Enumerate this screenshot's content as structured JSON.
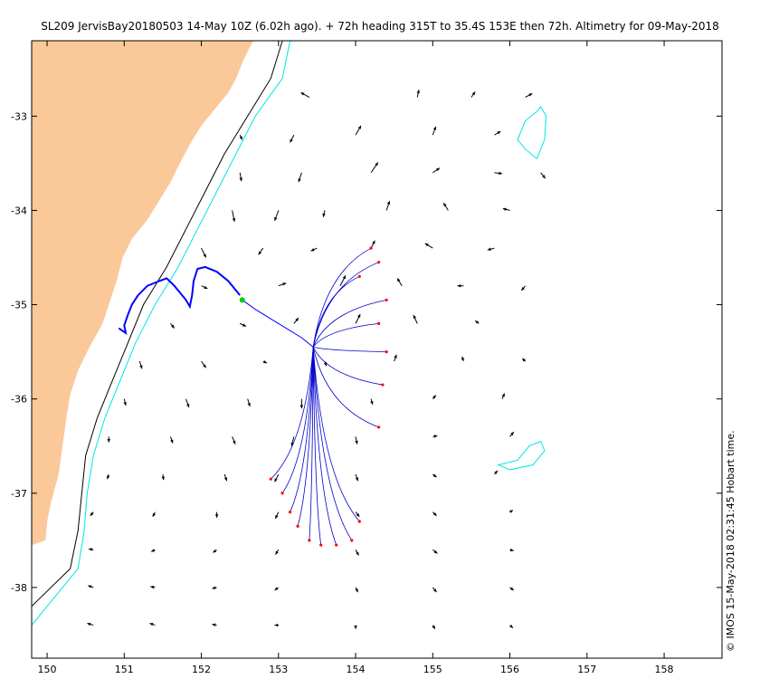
{
  "title": "SL209 JervisBay20180503 14-May 10Z (6.02h ago). + 72h heading 315T to 35.4S 153E then 72h. Altimetry for 09-May-2018",
  "credit": "© IMOS 15-May-2018 02:31:45 Hobart time.",
  "colors": {
    "land": "#fac899",
    "contour_offshore": "#00e5e5",
    "contour_shelf": "#000000",
    "glider_track": "#0000ff",
    "trajectory": "#0000cc",
    "trajectory_end": "#ff0000",
    "current_marker": "#00cc00",
    "arrow": "#000000"
  },
  "axes": {
    "x_ticks": [
      150,
      151,
      152,
      153,
      154,
      155,
      156,
      157,
      158
    ],
    "x_tick_labels": [
      "150",
      "151",
      "152",
      "153",
      "154",
      "155",
      "156",
      "157",
      "158"
    ],
    "y_ticks": [
      -33,
      -34,
      -35,
      -36,
      -37,
      -38
    ],
    "y_tick_labels": [
      "-33",
      "-34",
      "-35",
      "-36",
      "-37",
      "-38"
    ],
    "xlim": [
      149.8,
      158.75
    ],
    "ylim": [
      -38.75,
      -32.2
    ]
  },
  "map": {
    "coast": [
      [
        -32.2,
        152.67
      ],
      [
        -32.4,
        152.55
      ],
      [
        -32.6,
        152.45
      ],
      [
        -32.75,
        152.35
      ],
      [
        -32.9,
        152.2
      ],
      [
        -33.1,
        152.0
      ],
      [
        -33.3,
        151.85
      ],
      [
        -33.5,
        151.72
      ],
      [
        -33.7,
        151.6
      ],
      [
        -33.9,
        151.45
      ],
      [
        -34.1,
        151.3
      ],
      [
        -34.3,
        151.1
      ],
      [
        -34.5,
        150.98
      ],
      [
        -34.75,
        150.9
      ],
      [
        -35.0,
        150.8
      ],
      [
        -35.2,
        150.72
      ],
      [
        -35.45,
        150.55
      ],
      [
        -35.7,
        150.4
      ],
      [
        -35.95,
        150.3
      ],
      [
        -36.2,
        150.25
      ],
      [
        -36.5,
        150.2
      ],
      [
        -36.8,
        150.15
      ],
      [
        -37.1,
        150.05
      ],
      [
        -37.3,
        150.0
      ],
      [
        -37.5,
        149.98
      ],
      [
        -37.55,
        149.8
      ]
    ],
    "contour_shelf": [
      [
        -32.2,
        153.05
      ],
      [
        -32.6,
        152.9
      ],
      [
        -33.0,
        152.6
      ],
      [
        -33.4,
        152.3
      ],
      [
        -33.8,
        152.05
      ],
      [
        -34.2,
        151.8
      ],
      [
        -34.6,
        151.55
      ],
      [
        -35.0,
        151.25
      ],
      [
        -35.4,
        151.05
      ],
      [
        -35.8,
        150.85
      ],
      [
        -36.2,
        150.65
      ],
      [
        -36.6,
        150.5
      ],
      [
        -37.0,
        150.45
      ],
      [
        -37.4,
        150.4
      ],
      [
        -37.8,
        150.3
      ],
      [
        -38.2,
        149.8
      ]
    ],
    "contour_offshore": [
      [
        -32.2,
        153.15
      ],
      [
        -32.6,
        153.05
      ],
      [
        -33.0,
        152.7
      ],
      [
        -33.4,
        152.45
      ],
      [
        -33.8,
        152.2
      ],
      [
        -34.2,
        151.95
      ],
      [
        -34.6,
        151.7
      ],
      [
        -35.0,
        151.4
      ],
      [
        -35.4,
        151.15
      ],
      [
        -35.8,
        150.95
      ],
      [
        -36.2,
        150.75
      ],
      [
        -36.6,
        150.6
      ],
      [
        -37.0,
        150.52
      ],
      [
        -37.4,
        150.48
      ],
      [
        -37.8,
        150.4
      ],
      [
        -38.4,
        149.8
      ]
    ],
    "ring_ne": [
      [
        -32.95,
        156.35
      ],
      [
        -32.9,
        156.4
      ],
      [
        -33.0,
        156.47
      ],
      [
        -33.25,
        156.45
      ],
      [
        -33.45,
        156.35
      ],
      [
        -33.35,
        156.2
      ],
      [
        -33.25,
        156.1
      ],
      [
        -33.05,
        156.2
      ],
      [
        -32.95,
        156.35
      ]
    ],
    "ring_se": [
      [
        -36.45,
        156.4
      ],
      [
        -36.55,
        156.45
      ],
      [
        -36.7,
        156.3
      ],
      [
        -36.75,
        156.0
      ],
      [
        -36.7,
        155.85
      ],
      [
        -36.65,
        156.1
      ],
      [
        -36.5,
        156.25
      ],
      [
        -36.45,
        156.4
      ]
    ],
    "glider_track": [
      [
        -35.25,
        150.93
      ],
      [
        -35.3,
        151.02
      ],
      [
        -35.22,
        151.0
      ],
      [
        -35.1,
        151.05
      ],
      [
        -35.0,
        151.1
      ],
      [
        -34.9,
        151.18
      ],
      [
        -34.8,
        151.3
      ],
      [
        -34.75,
        151.45
      ],
      [
        -34.72,
        151.55
      ],
      [
        -34.8,
        151.65
      ],
      [
        -34.95,
        151.8
      ],
      [
        -35.02,
        151.85
      ],
      [
        -34.9,
        151.88
      ],
      [
        -34.75,
        151.9
      ],
      [
        -34.62,
        151.95
      ],
      [
        -34.6,
        152.05
      ],
      [
        -34.65,
        152.2
      ],
      [
        -34.75,
        152.35
      ],
      [
        -34.9,
        152.5
      ]
    ],
    "glider_position": [
      -34.95,
      152.53
    ],
    "heading_line": [
      [
        -34.95,
        152.53
      ],
      [
        -35.05,
        152.7
      ],
      [
        -35.15,
        152.9
      ],
      [
        -35.25,
        153.1
      ],
      [
        -35.35,
        153.3
      ],
      [
        -35.45,
        153.45
      ]
    ],
    "trajectory_ends": [
      [
        -34.4,
        154.2
      ],
      [
        -34.55,
        154.3
      ],
      [
        -34.7,
        154.05
      ],
      [
        -34.95,
        154.4
      ],
      [
        -35.2,
        154.3
      ],
      [
        -35.5,
        154.4
      ],
      [
        -35.85,
        154.35
      ],
      [
        -36.3,
        154.3
      ],
      [
        -36.85,
        152.9
      ],
      [
        -37.0,
        153.05
      ],
      [
        -37.2,
        153.15
      ],
      [
        -37.35,
        153.25
      ],
      [
        -37.5,
        153.4
      ],
      [
        -37.55,
        153.55
      ],
      [
        -37.55,
        153.75
      ],
      [
        -37.5,
        153.95
      ],
      [
        -37.3,
        154.05
      ]
    ],
    "flow_field": [
      [
        -32.8,
        153.4,
        -0.11,
        0.05
      ],
      [
        -32.8,
        154.8,
        0.02,
        0.08
      ],
      [
        -32.8,
        155.5,
        0.05,
        0.06
      ],
      [
        -32.8,
        156.2,
        0.09,
        0.04
      ],
      [
        -33.2,
        152.5,
        0.03,
        -0.05
      ],
      [
        -33.2,
        153.2,
        -0.05,
        -0.08
      ],
      [
        -33.2,
        154.0,
        0.07,
        0.1
      ],
      [
        -33.2,
        155.0,
        0.04,
        0.09
      ],
      [
        -33.2,
        155.8,
        0.08,
        0.04
      ],
      [
        -33.6,
        152.5,
        0.02,
        -0.09
      ],
      [
        -33.6,
        153.3,
        -0.04,
        -0.1
      ],
      [
        -33.6,
        154.2,
        0.09,
        0.11
      ],
      [
        -33.6,
        155.0,
        0.09,
        0.05
      ],
      [
        -33.6,
        155.8,
        0.1,
        -0.01
      ],
      [
        -33.6,
        156.4,
        0.06,
        -0.06
      ],
      [
        -34.0,
        152.4,
        0.03,
        -0.12
      ],
      [
        -34.0,
        153.0,
        -0.05,
        -0.11
      ],
      [
        -34.0,
        153.6,
        -0.02,
        -0.07
      ],
      [
        -34.0,
        154.4,
        0.04,
        0.1
      ],
      [
        -34.0,
        155.2,
        -0.06,
        0.08
      ],
      [
        -34.0,
        156.0,
        -0.09,
        0.02
      ],
      [
        -34.4,
        152.0,
        0.06,
        -0.1
      ],
      [
        -34.4,
        152.8,
        -0.06,
        -0.07
      ],
      [
        -34.4,
        153.5,
        -0.08,
        -0.03
      ],
      [
        -34.4,
        154.2,
        0.05,
        0.08
      ],
      [
        -34.4,
        155.0,
        -0.1,
        0.05
      ],
      [
        -34.4,
        155.8,
        -0.09,
        -0.02
      ],
      [
        -34.8,
        152.0,
        0.08,
        -0.03
      ],
      [
        -34.8,
        153.0,
        0.1,
        0.03
      ],
      [
        -34.8,
        153.8,
        0.07,
        0.11
      ],
      [
        -34.8,
        154.6,
        -0.06,
        0.08
      ],
      [
        -34.8,
        155.4,
        -0.08,
        0.0
      ],
      [
        -34.8,
        156.2,
        -0.05,
        -0.05
      ],
      [
        -35.2,
        151.6,
        0.05,
        -0.05
      ],
      [
        -35.2,
        152.5,
        0.08,
        -0.03
      ],
      [
        -35.2,
        153.2,
        0.06,
        0.06
      ],
      [
        -35.2,
        154.0,
        0.06,
        0.1
      ],
      [
        -35.2,
        154.8,
        -0.05,
        0.09
      ],
      [
        -35.2,
        155.6,
        -0.05,
        0.03
      ],
      [
        -35.6,
        151.2,
        0.03,
        -0.08
      ],
      [
        -35.6,
        152.0,
        0.06,
        -0.07
      ],
      [
        -35.6,
        152.8,
        0.05,
        -0.02
      ],
      [
        -35.6,
        153.6,
        0.02,
        -0.05
      ],
      [
        -35.6,
        154.5,
        0.03,
        0.07
      ],
      [
        -35.6,
        155.4,
        -0.02,
        0.05
      ],
      [
        -35.6,
        156.2,
        -0.04,
        0.03
      ],
      [
        -36.0,
        151.0,
        0.02,
        -0.07
      ],
      [
        -36.0,
        151.8,
        0.04,
        -0.09
      ],
      [
        -36.0,
        152.6,
        0.03,
        -0.08
      ],
      [
        -36.0,
        153.3,
        0.0,
        -0.1
      ],
      [
        -36.0,
        154.2,
        0.02,
        -0.06
      ],
      [
        -36.0,
        155.0,
        0.04,
        0.04
      ],
      [
        -36.0,
        155.9,
        0.03,
        0.06
      ],
      [
        -36.4,
        150.8,
        0.0,
        -0.06
      ],
      [
        -36.4,
        151.6,
        0.03,
        -0.07
      ],
      [
        -36.4,
        152.4,
        0.04,
        -0.08
      ],
      [
        -36.4,
        153.2,
        -0.03,
        -0.1
      ],
      [
        -36.4,
        154.0,
        0.02,
        -0.08
      ],
      [
        -36.4,
        155.0,
        0.06,
        0.01
      ],
      [
        -36.4,
        156.0,
        0.05,
        0.05
      ],
      [
        -36.8,
        150.8,
        -0.02,
        -0.05
      ],
      [
        -36.8,
        151.5,
        0.01,
        -0.06
      ],
      [
        -36.8,
        152.3,
        0.03,
        -0.07
      ],
      [
        -36.8,
        153.0,
        -0.05,
        -0.08
      ],
      [
        -36.8,
        154.0,
        0.03,
        -0.07
      ],
      [
        -36.8,
        155.0,
        0.05,
        -0.03
      ],
      [
        -36.8,
        155.8,
        0.04,
        0.04
      ],
      [
        -37.2,
        150.6,
        -0.04,
        -0.04
      ],
      [
        -37.2,
        151.4,
        -0.03,
        -0.05
      ],
      [
        -37.2,
        152.2,
        0.0,
        -0.06
      ],
      [
        -37.2,
        153.0,
        -0.04,
        -0.07
      ],
      [
        -37.2,
        154.0,
        0.05,
        -0.05
      ],
      [
        -37.2,
        155.0,
        0.05,
        -0.04
      ],
      [
        -37.2,
        156.0,
        0.04,
        0.02
      ],
      [
        -37.6,
        150.6,
        -0.06,
        0.01
      ],
      [
        -37.6,
        151.4,
        -0.05,
        -0.02
      ],
      [
        -37.6,
        152.2,
        -0.05,
        -0.03
      ],
      [
        -37.6,
        153.0,
        -0.04,
        -0.05
      ],
      [
        -37.6,
        154.0,
        0.04,
        -0.06
      ],
      [
        -37.6,
        155.0,
        0.06,
        -0.04
      ],
      [
        -37.6,
        156.0,
        0.05,
        -0.01
      ],
      [
        -38.0,
        150.6,
        -0.07,
        0.02
      ],
      [
        -38.0,
        151.4,
        -0.06,
        0.01
      ],
      [
        -38.0,
        152.2,
        -0.06,
        -0.01
      ],
      [
        -38.0,
        153.0,
        -0.05,
        -0.03
      ],
      [
        -38.0,
        154.0,
        0.03,
        -0.05
      ],
      [
        -38.0,
        155.0,
        0.05,
        -0.05
      ],
      [
        -38.0,
        156.0,
        0.05,
        -0.03
      ],
      [
        -38.4,
        150.6,
        -0.08,
        0.02
      ],
      [
        -38.4,
        151.4,
        -0.07,
        0.02
      ],
      [
        -38.4,
        152.2,
        -0.06,
        0.01
      ],
      [
        -38.4,
        153.0,
        -0.05,
        0.0
      ],
      [
        -38.4,
        154.0,
        0.0,
        -0.04
      ],
      [
        -38.4,
        155.0,
        0.03,
        -0.04
      ],
      [
        -38.4,
        156.0,
        0.04,
        -0.03
      ]
    ]
  }
}
